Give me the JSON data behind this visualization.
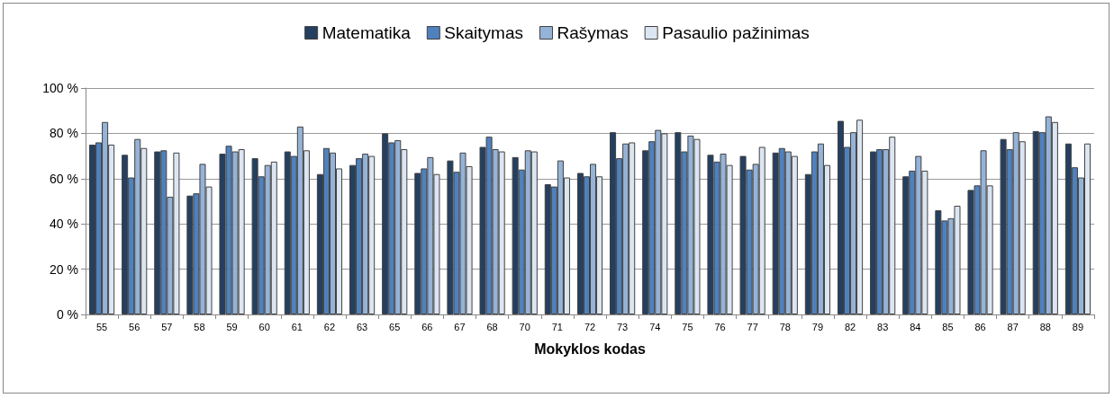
{
  "chart_data": {
    "type": "bar",
    "xlabel": "Mokyklos kodas",
    "categories": [
      "55",
      "56",
      "57",
      "58",
      "59",
      "60",
      "61",
      "62",
      "63",
      "65",
      "66",
      "67",
      "68",
      "70",
      "71",
      "72",
      "73",
      "74",
      "75",
      "76",
      "77",
      "78",
      "79",
      "82",
      "83",
      "84",
      "85",
      "86",
      "87",
      "88",
      "89"
    ],
    "series": [
      {
        "name": "Matematika",
        "color": "#243f60",
        "values": [
          75,
          70.5,
          72,
          52.5,
          71,
          69,
          72,
          62,
          66,
          80,
          62.5,
          68,
          74,
          69.5,
          57.5,
          62.5,
          80.5,
          72.5,
          80.5,
          70.5,
          70,
          71.5,
          62,
          85.5,
          72,
          61,
          46,
          55,
          77.5,
          81,
          75.5
        ]
      },
      {
        "name": "Skaitymas",
        "color": "#4f81bd",
        "values": [
          76,
          60.5,
          72.5,
          53.5,
          74.5,
          61,
          70,
          73.5,
          69,
          76,
          64.5,
          63,
          78.5,
          64,
          56.5,
          61,
          69,
          76.5,
          72,
          67.5,
          64,
          73.5,
          72,
          74,
          73,
          63.5,
          41.5,
          57,
          73,
          80.5,
          65
        ]
      },
      {
        "name": "Rašymas",
        "color": "#95b3d7",
        "values": [
          85,
          77.5,
          52,
          66.5,
          72,
          66,
          83,
          71.5,
          71,
          77,
          69.5,
          71.5,
          73,
          72.5,
          68,
          66.5,
          75.5,
          81.5,
          79,
          71,
          66.5,
          72,
          75.5,
          80.5,
          73,
          70,
          42.5,
          72.5,
          80.5,
          87.5,
          60.5
        ]
      },
      {
        "name": "Pasaulio pažinimas",
        "color": "#dce6f2",
        "values": [
          75,
          73.5,
          71.5,
          56.5,
          73,
          67.5,
          72.5,
          64.5,
          70,
          73,
          62,
          65.5,
          72,
          72,
          60.5,
          61,
          76,
          80,
          77.5,
          66,
          74,
          70,
          66,
          86,
          78.5,
          63.5,
          48,
          57,
          76.5,
          85,
          75.5
        ]
      }
    ],
    "ylim": [
      0,
      100
    ],
    "yticks": [
      {
        "value": 0,
        "label": "0 %"
      },
      {
        "value": 20,
        "label": "20 %"
      },
      {
        "value": 40,
        "label": "40 %"
      },
      {
        "value": 60,
        "label": "60 %"
      },
      {
        "value": 80,
        "label": "80 %"
      },
      {
        "value": 100,
        "label": "100 %"
      }
    ],
    "grid": "y",
    "legend": "top"
  }
}
